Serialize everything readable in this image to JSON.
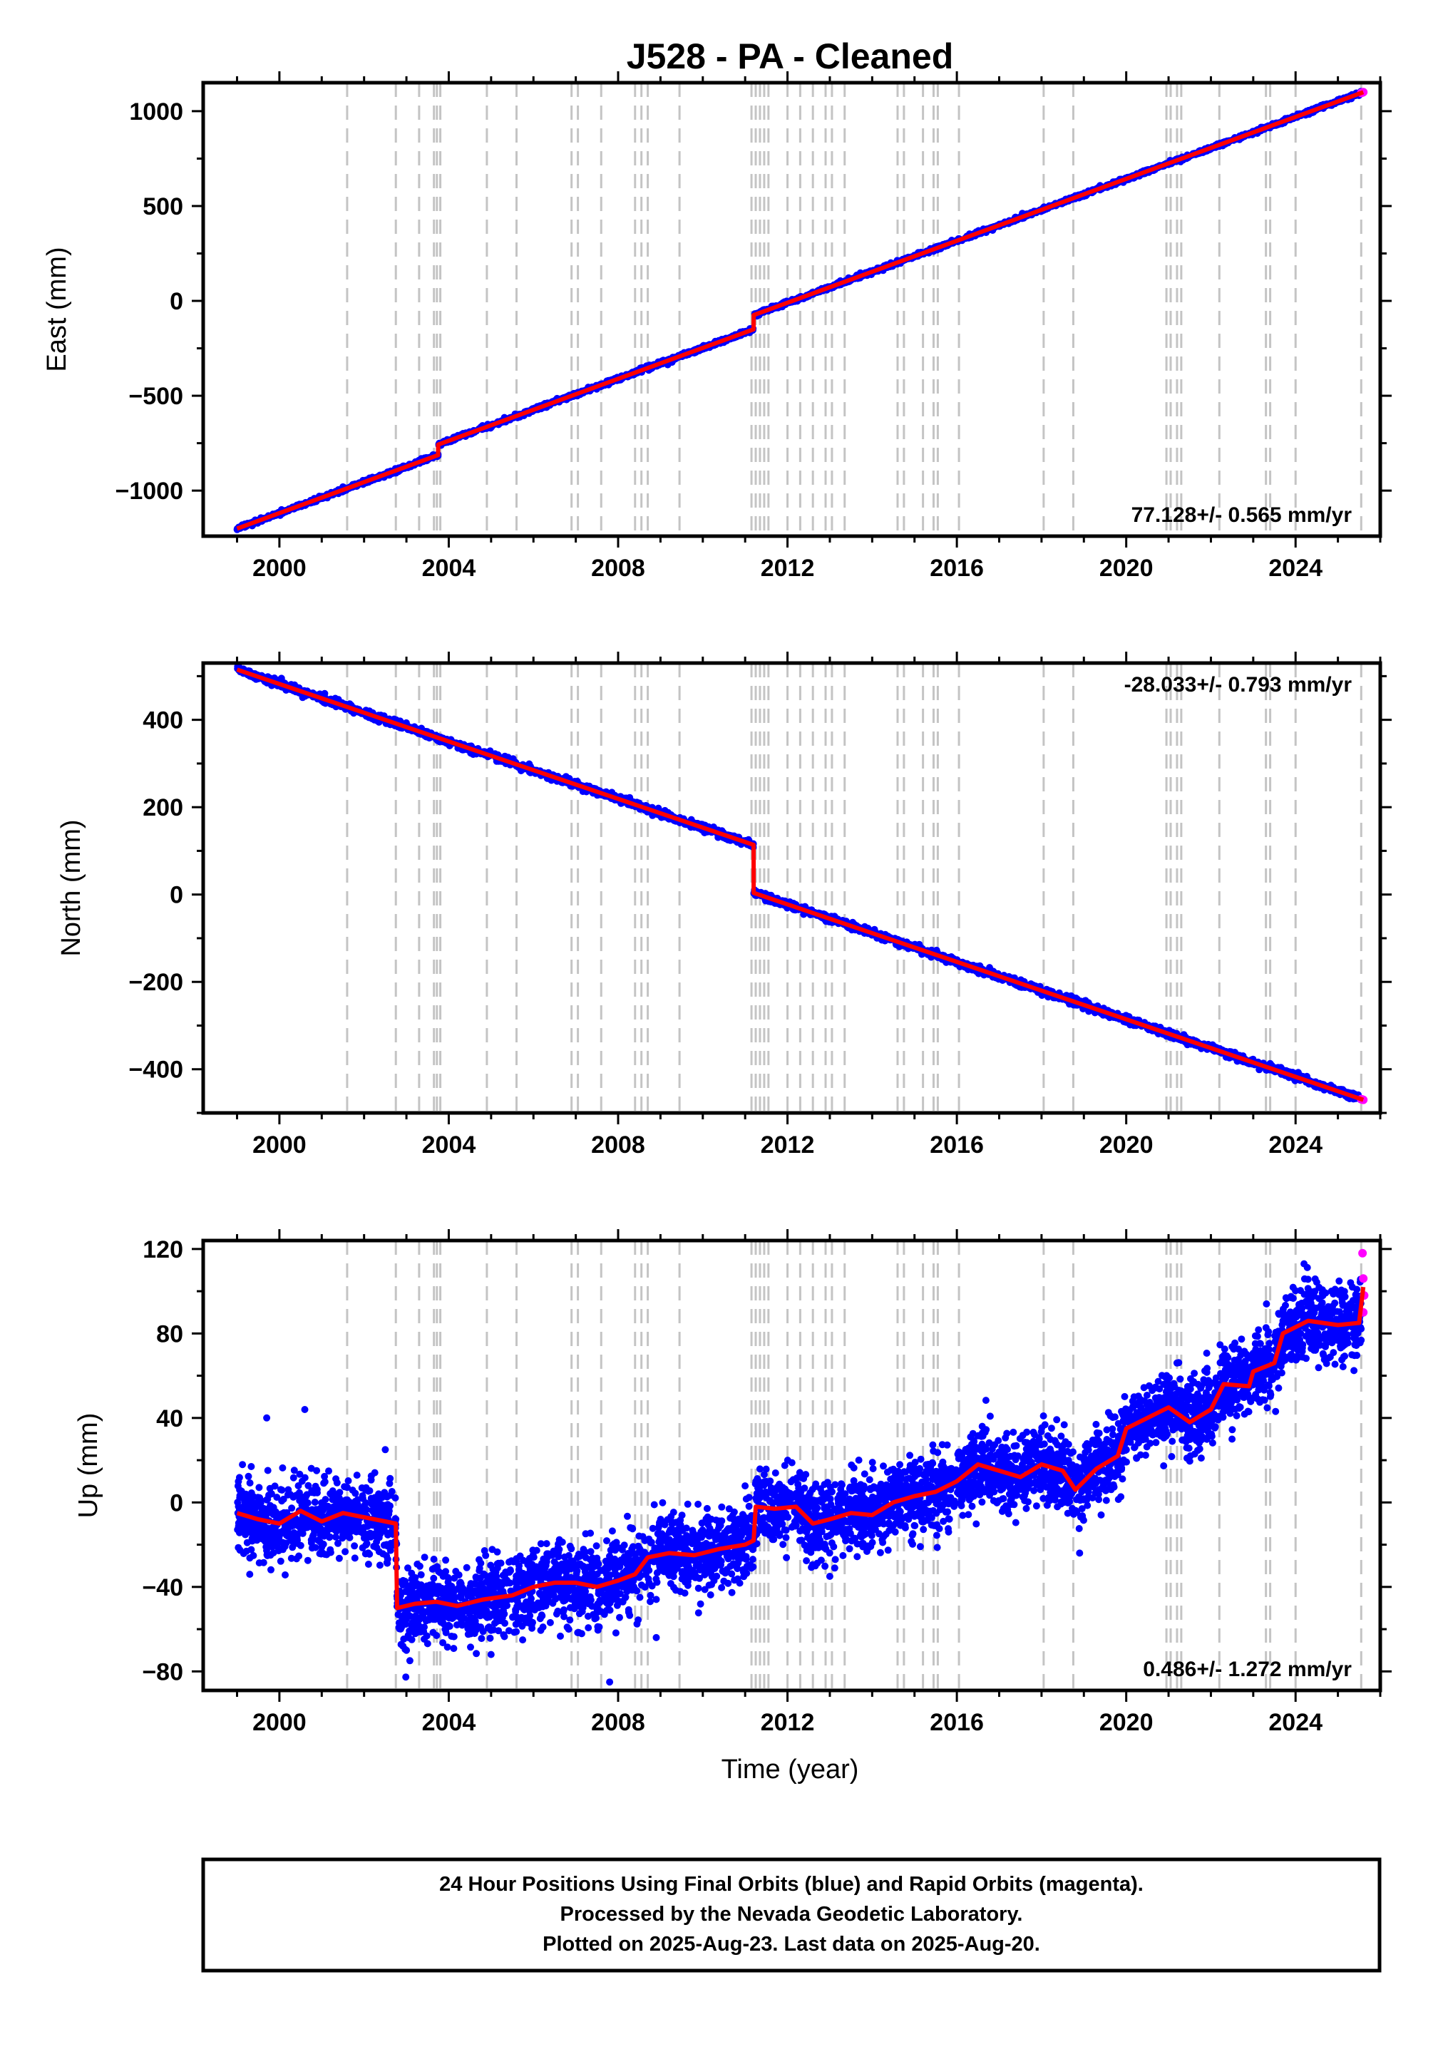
{
  "chart_data": [
    {
      "type": "scatter",
      "panel": "east",
      "title": "J528  - PA - Cleaned",
      "xlabel": "",
      "ylabel": "East (mm)",
      "xlim": [
        1998.2,
        2026.0
      ],
      "ylim": [
        -1240,
        1150
      ],
      "xticks": [
        2000,
        2004,
        2008,
        2012,
        2016,
        2020,
        2024
      ],
      "xtick_labels": [
        "2000",
        "2004",
        "2008",
        "2012",
        "2016",
        "2020",
        "2024"
      ],
      "yticks": [
        -1000,
        -500,
        0,
        500,
        1000
      ],
      "ytick_labels": [
        "−1000",
        "−500",
        "0",
        "500",
        "1000"
      ],
      "rate_text": "77.128+/- 0.565 mm/yr",
      "start": [
        1999.0,
        -1200
      ],
      "end": [
        2025.6,
        1100
      ],
      "steps": [
        [
          2003.75,
          55
        ],
        [
          2011.2,
          75
        ]
      ],
      "noise_mm": 5,
      "rapid_start": 2025.55,
      "series": [
        {
          "name": "Final Orbits",
          "role": "final",
          "color": "#0000ff"
        },
        {
          "name": "Rapid Orbits",
          "role": "rapid",
          "color": "#ff00ff"
        },
        {
          "role": "model",
          "color": "#ff0000"
        }
      ]
    },
    {
      "type": "scatter",
      "panel": "north",
      "title": "",
      "xlabel": "",
      "ylabel": "North (mm)",
      "xlim": [
        1998.2,
        2026.0
      ],
      "ylim": [
        -500,
        530
      ],
      "xticks": [
        2000,
        2004,
        2008,
        2012,
        2016,
        2020,
        2024
      ],
      "xtick_labels": [
        "2000",
        "2004",
        "2008",
        "2012",
        "2016",
        "2020",
        "2024"
      ],
      "yticks": [
        -400,
        -200,
        0,
        200,
        400
      ],
      "ytick_labels": [
        "−400",
        "−200",
        "0",
        "200",
        "400"
      ],
      "rate_text": "-28.033+/- 0.793 mm/yr",
      "start": [
        1999.0,
        515
      ],
      "end": [
        2025.6,
        -470
      ],
      "steps": [
        [
          2011.2,
          -110
        ]
      ],
      "noise_mm": 4,
      "rapid_start": 2025.55,
      "series": [
        {
          "name": "Final Orbits",
          "role": "final",
          "color": "#0000ff"
        },
        {
          "name": "Rapid Orbits",
          "role": "rapid",
          "color": "#ff00ff"
        },
        {
          "role": "model",
          "color": "#ff0000"
        }
      ]
    },
    {
      "type": "scatter",
      "panel": "up",
      "title": "",
      "xlabel": "Time (year)",
      "ylabel": "Up (mm)",
      "xlim": [
        1998.2,
        2026.0
      ],
      "ylim": [
        -89,
        124
      ],
      "xticks": [
        2000,
        2004,
        2008,
        2012,
        2016,
        2020,
        2024
      ],
      "xtick_labels": [
        "2000",
        "2004",
        "2008",
        "2012",
        "2016",
        "2020",
        "2024"
      ],
      "yticks": [
        -80,
        -40,
        0,
        40,
        80,
        120
      ],
      "ytick_labels": [
        "−80",
        "−40",
        "0",
        "40",
        "80",
        "120"
      ],
      "rate_text": "0.486+/- 1.272 mm/yr",
      "model_points": [
        [
          1999.0,
          -5
        ],
        [
          1999.5,
          -8
        ],
        [
          2000.0,
          -10
        ],
        [
          2000.5,
          -4
        ],
        [
          2001.0,
          -9
        ],
        [
          2001.5,
          -5
        ],
        [
          2002.0,
          -7
        ],
        [
          2002.5,
          -9
        ],
        [
          2002.75,
          -10
        ],
        [
          2002.78,
          -50
        ],
        [
          2003.2,
          -48
        ],
        [
          2003.7,
          -47
        ],
        [
          2004.2,
          -49
        ],
        [
          2004.8,
          -46
        ],
        [
          2005.5,
          -44
        ],
        [
          2006.0,
          -40
        ],
        [
          2006.5,
          -38
        ],
        [
          2007.0,
          -38
        ],
        [
          2007.5,
          -40
        ],
        [
          2008.0,
          -37
        ],
        [
          2008.4,
          -34
        ],
        [
          2008.7,
          -26
        ],
        [
          2009.2,
          -24
        ],
        [
          2009.8,
          -25
        ],
        [
          2010.4,
          -22
        ],
        [
          2011.0,
          -20
        ],
        [
          2011.2,
          -18
        ],
        [
          2011.25,
          -2
        ],
        [
          2011.7,
          -3
        ],
        [
          2012.2,
          -2
        ],
        [
          2012.6,
          -10
        ],
        [
          2013.0,
          -8
        ],
        [
          2013.5,
          -5
        ],
        [
          2014.0,
          -6
        ],
        [
          2014.5,
          0
        ],
        [
          2015.0,
          3
        ],
        [
          2015.5,
          5
        ],
        [
          2016.0,
          10
        ],
        [
          2016.5,
          18
        ],
        [
          2017.0,
          15
        ],
        [
          2017.5,
          12
        ],
        [
          2018.0,
          18
        ],
        [
          2018.5,
          15
        ],
        [
          2018.8,
          6
        ],
        [
          2019.3,
          16
        ],
        [
          2019.8,
          22
        ],
        [
          2020.0,
          35
        ],
        [
          2020.5,
          40
        ],
        [
          2021.0,
          45
        ],
        [
          2021.5,
          38
        ],
        [
          2022.0,
          44
        ],
        [
          2022.3,
          56
        ],
        [
          2022.9,
          55
        ],
        [
          2023.0,
          62
        ],
        [
          2023.5,
          66
        ],
        [
          2023.7,
          80
        ],
        [
          2024.3,
          86
        ],
        [
          2025.0,
          84
        ],
        [
          2025.5,
          85
        ],
        [
          2025.6,
          102
        ]
      ],
      "noise_mm": 9,
      "outliers": [
        [
          1999.3,
          -34
        ],
        [
          1999.7,
          40
        ],
        [
          2000.6,
          44
        ],
        [
          2002.5,
          25
        ],
        [
          2003.0,
          -70
        ],
        [
          2005.0,
          -72
        ],
        [
          2007.8,
          -85
        ],
        [
          2008.9,
          -64
        ],
        [
          2013.0,
          -35
        ],
        [
          2018.9,
          -24
        ],
        [
          2021.2,
          66
        ],
        [
          2022.5,
          30
        ],
        [
          2024.2,
          113
        ],
        [
          2025.3,
          104
        ]
      ],
      "rapid_points": [
        [
          2025.58,
          118
        ],
        [
          2025.6,
          106
        ],
        [
          2025.62,
          98
        ],
        [
          2025.6,
          90
        ]
      ],
      "rapid_start": 2025.55,
      "series": [
        {
          "name": "Final Orbits",
          "role": "final",
          "color": "#0000ff"
        },
        {
          "name": "Rapid Orbits",
          "role": "rapid",
          "color": "#ff00ff"
        },
        {
          "role": "model",
          "color": "#ff0000"
        }
      ]
    }
  ],
  "event_lines": [
    2001.6,
    2002.75,
    2003.3,
    2003.65,
    2003.72,
    2003.8,
    2004.9,
    2005.6,
    2006.9,
    2007.05,
    2007.6,
    2008.4,
    2008.55,
    2008.7,
    2009.45,
    2011.15,
    2011.25,
    2011.35,
    2011.45,
    2011.55,
    2012.0,
    2012.3,
    2012.6,
    2012.9,
    2013.05,
    2013.35,
    2014.6,
    2014.75,
    2015.2,
    2015.45,
    2015.55,
    2016.05,
    2018.05,
    2018.75,
    2020.95,
    2021.05,
    2021.2,
    2021.3,
    2022.2,
    2023.3,
    2023.4,
    2024.0,
    2025.55
  ],
  "event_line_color": "#c4c4c4",
  "footer": {
    "line1": "24 Hour Positions Using Final Orbits (blue) and Rapid Orbits (magenta).",
    "line2": "Processed by the Nevada Geodetic Laboratory.",
    "line3": "Plotted on 2025-Aug-23. Last data on 2025-Aug-20."
  }
}
